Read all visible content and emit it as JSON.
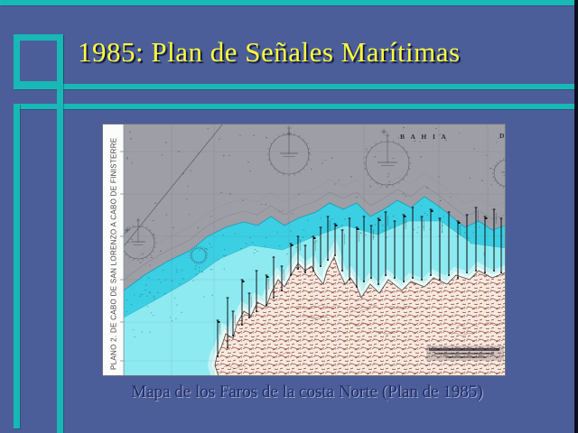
{
  "theme": {
    "background": "#4c5e99",
    "accent_teal": "#17b8b6",
    "edge_strip": "#0c101e",
    "title_color": "#fdfd3a",
    "title_shadow": "#10163a",
    "caption_color": "#1e2a6a"
  },
  "slide": {
    "title": "1985: Plan de Señales Marítimas",
    "caption": "Mapa de los Faros de la costa Norte (Plan de 1985)"
  },
  "map": {
    "side_label": "PLANO 2. DE CABO DE SAN LORENZO A CABO DE FINISTERRE",
    "sea_label": "B A H I A",
    "sea_label_right": "D",
    "colors": {
      "deep_sea": "#9d9ea6",
      "shallow_outer": "#3bcfe4",
      "shallow_mid": "#8deaf1",
      "shallow_inner": "#e9fbf9",
      "coast_halo": "#c6f2f2",
      "land_base": "#f5eae2",
      "land_relief": "#8a4434",
      "strip_bg": "#fcfcfa",
      "ink": "#3c4254"
    }
  }
}
